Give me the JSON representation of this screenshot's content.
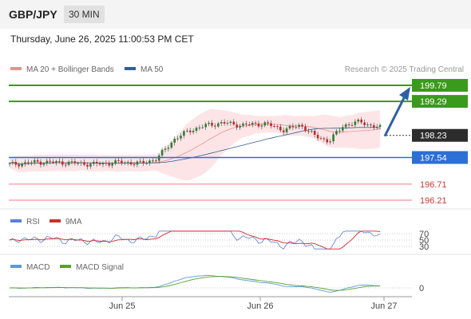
{
  "header": {
    "pair": "GBP/JPY",
    "timeframe": "30 MIN",
    "datetime": "Thursday, June 26, 2025 11:00:53 PM CET"
  },
  "colors": {
    "bullish_level": "#3a9a1c",
    "pivot_level": "#2c6fd6",
    "bearish_level": "#f07a85",
    "current_price": "#2d2d2d",
    "bollinger_fill": "#fde2e4",
    "ma20": "#f28c8c",
    "ma50": "#335f95",
    "arrow": "#2f5fa5",
    "rsi": "#5b7fd6",
    "rsi_9ma": "#d62a2a",
    "macd": "#5b9bd6",
    "macd_signal": "#5aa02c"
  },
  "chart_data": [
    {
      "type": "candlestick",
      "legend": [
        {
          "name": "MA 20 + Bollinger Bands",
          "color": "#f28c8c"
        },
        {
          "name": "MA 50",
          "color": "#335f95"
        }
      ],
      "watermark": "Research © 2025 Trading Central",
      "ylim": [
        195.9,
        200.0
      ],
      "levels": [
        {
          "label": "199.79",
          "value": 199.79,
          "kind": "resistance"
        },
        {
          "label": "199.29",
          "value": 199.29,
          "kind": "resistance"
        },
        {
          "label": "198.23",
          "value": 198.23,
          "kind": "current"
        },
        {
          "label": "197.54",
          "value": 197.54,
          "kind": "pivot"
        },
        {
          "label": "196.71",
          "value": 196.71,
          "kind": "support"
        },
        {
          "label": "196.21",
          "value": 196.21,
          "kind": "support"
        }
      ],
      "x_ticks": [
        "Jun 25",
        "Jun 26",
        "Jun 27"
      ],
      "projection": {
        "from": 198.23,
        "to": 199.79,
        "direction": "up"
      }
    },
    {
      "type": "line",
      "legend": [
        {
          "name": "RSI",
          "color": "#5b7fd6"
        },
        {
          "name": "9MA",
          "color": "#d62a2a"
        }
      ],
      "levels": [
        {
          "label": "70",
          "value": 70
        },
        {
          "label": "50",
          "value": 50
        },
        {
          "label": "30",
          "value": 30
        }
      ],
      "ylim": [
        20,
        80
      ]
    },
    {
      "type": "line",
      "legend": [
        {
          "name": "MACD",
          "color": "#5b9bd6"
        },
        {
          "name": "MACD Signal",
          "color": "#5aa02c"
        }
      ],
      "levels": [
        {
          "label": "0",
          "value": 0
        }
      ]
    }
  ]
}
